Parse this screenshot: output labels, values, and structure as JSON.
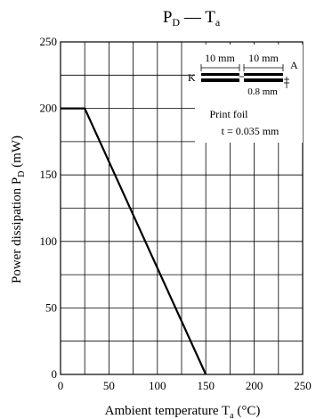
{
  "chart_data": {
    "type": "line",
    "title": "P",
    "title_sub": "D",
    "title_dash": "—",
    "title_t": "T",
    "title_t_sub": "a",
    "xlabel_main": "Ambient temperature",
    "xlabel_sym": "T",
    "xlabel_sub": "a",
    "xlabel_unit": "(°C)",
    "ylabel_main": "Power dissipation",
    "ylabel_sym": "P",
    "ylabel_sub": "D",
    "ylabel_unit": "(mW)",
    "xlim": [
      0,
      250
    ],
    "ylim": [
      0,
      250
    ],
    "x_ticks": [
      0,
      50,
      100,
      150,
      200,
      250
    ],
    "y_ticks": [
      0,
      50,
      100,
      150,
      200,
      250
    ],
    "grid": true,
    "series": [
      {
        "x": [
          0,
          25,
          150
        ],
        "y": [
          200,
          200,
          0
        ]
      }
    ],
    "inset": {
      "dim_left": "10 mm",
      "dim_right": "10 mm",
      "label_k": "K",
      "label_a": "A",
      "gap": "0.8 mm",
      "caption_1": "Print foil",
      "caption_2": "t = 0.035 mm"
    }
  }
}
